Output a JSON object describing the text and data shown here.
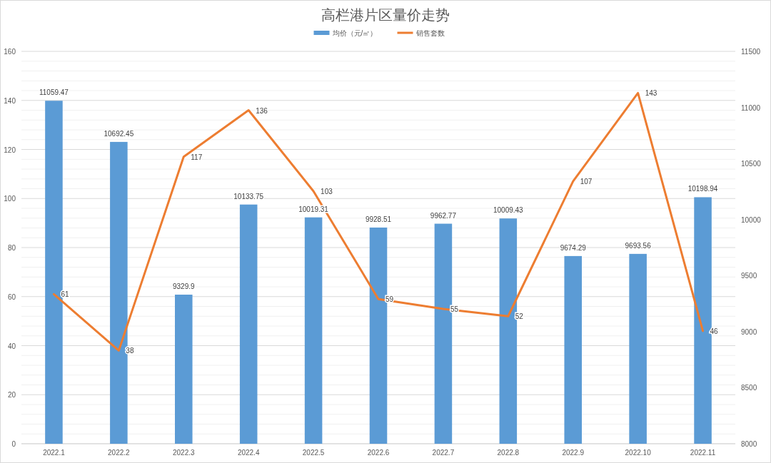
{
  "chart_data": {
    "type": "bar",
    "title": "高栏港片区量价走势",
    "categories": [
      "2022.1",
      "2022.2",
      "2022.3",
      "2022.4",
      "2022.5",
      "2022.6",
      "2022.7",
      "2022.8",
      "2022.9",
      "2022.10",
      "2022.11"
    ],
    "series": [
      {
        "name": "均价（元/㎡）",
        "axis": "y2",
        "color": "#5b9bd5",
        "values": [
          11059.47,
          10692.45,
          9329.9,
          10133.75,
          10019.31,
          9928.51,
          9962.77,
          10009.43,
          9674.29,
          9693.56,
          10198.94
        ]
      },
      {
        "name": "销售套数",
        "type": "line",
        "axis": "y",
        "color": "#ed7d31",
        "values": [
          61,
          38,
          117,
          136,
          103,
          59,
          55,
          52,
          107,
          143,
          46
        ]
      }
    ],
    "ylim": [
      0,
      160
    ],
    "yticks": [
      0,
      {
        "value": 4,
        "label": null
      },
      {
        "value": 8,
        "label": null
      },
      {
        "value": 12,
        "label": null
      },
      {
        "value": 16,
        "label": null
      },
      20,
      {
        "value": 24,
        "label": null
      },
      {
        "value": 28,
        "label": null
      },
      {
        "value": 32,
        "label": null
      },
      {
        "value": 36,
        "label": null
      },
      40,
      {
        "value": 44,
        "label": null
      },
      {
        "value": 48,
        "label": null
      },
      {
        "value": 52,
        "label": null
      },
      {
        "value": 56,
        "label": null
      },
      60,
      {
        "value": 64,
        "label": null
      },
      {
        "value": 68,
        "label": null
      },
      {
        "value": 72,
        "label": null
      },
      {
        "value": 76,
        "label": null
      },
      80,
      {
        "value": 84,
        "label": null
      },
      {
        "value": 88,
        "label": null
      },
      {
        "value": 92,
        "label": null
      },
      {
        "value": 96,
        "label": null
      },
      100,
      {
        "value": 104,
        "label": null
      },
      {
        "value": 108,
        "label": null
      },
      {
        "value": 112,
        "label": null
      },
      {
        "value": 116,
        "label": null
      },
      120,
      {
        "value": 124,
        "label": null
      },
      {
        "value": 128,
        "label": null
      },
      {
        "value": 132,
        "label": null
      },
      {
        "value": 136,
        "label": null
      },
      140,
      {
        "value": 144,
        "label": null
      },
      {
        "value": 148,
        "label": null
      },
      {
        "value": 152,
        "label": null
      },
      {
        "value": 156,
        "label": null
      },
      160
    ],
    "y2lim": [
      8000,
      11500
    ],
    "y2ticks": [
      8000,
      8500,
      9000,
      9500,
      10000,
      10500,
      11000,
      11500
    ],
    "grid": "y",
    "legend": "top",
    "data_labels": true,
    "marker": "none",
    "line_style": "solid"
  }
}
